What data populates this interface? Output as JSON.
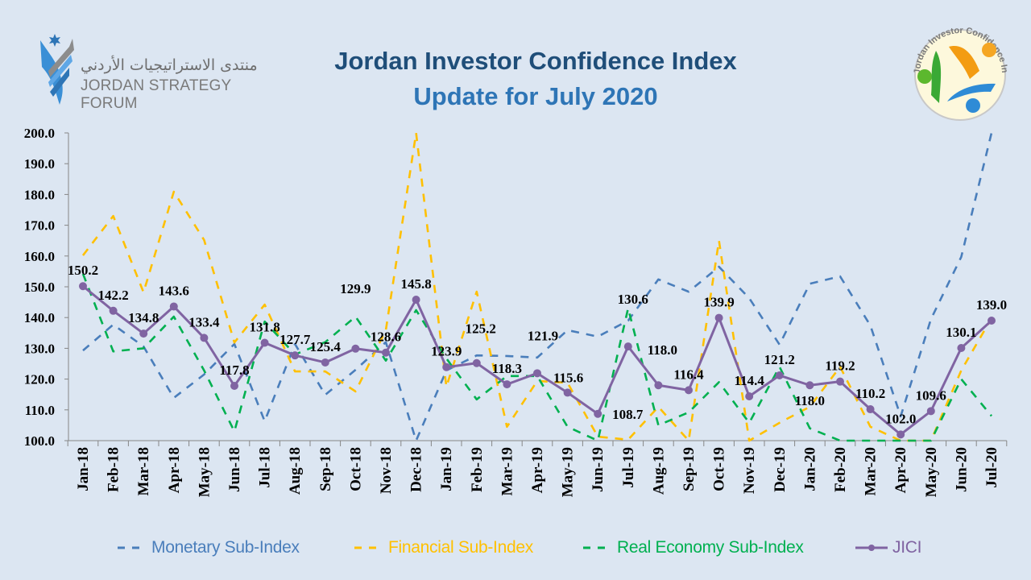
{
  "header": {
    "title": "Jordan Investor Confidence Index",
    "subtitle": "Update for July 2020",
    "org_logo": {
      "arabic": "منتدى الاستراتيجيات الأردني",
      "english": "JORDAN STRATEGY FORUM"
    },
    "index_logo": {
      "ring_text": "Jordan Investor Confidence Index",
      "segments": [
        "Financial System",
        "Monetary",
        "Real Economy"
      ]
    }
  },
  "colors": {
    "monetary": "#4a7ebb",
    "financial": "#ffc000",
    "real_economy": "#00b050",
    "jici": "#8064a2",
    "title": "#1f4e79",
    "subtitle": "#2e75b6"
  },
  "chart_data": {
    "type": "line",
    "title": "",
    "xlabel": "",
    "ylabel": "",
    "ylim": [
      100,
      200
    ],
    "yticks": [
      "100.0",
      "110.0",
      "120.0",
      "130.0",
      "140.0",
      "150.0",
      "160.0",
      "170.0",
      "180.0",
      "190.0",
      "200.0"
    ],
    "grid": false,
    "legend": "bottom",
    "categories": [
      "Jan-18",
      "Feb-18",
      "Mar-18",
      "Apr-18",
      "May-18",
      "Jun-18",
      "Jul-18",
      "Aug-18",
      "Sep-18",
      "Oct-18",
      "Nov-18",
      "Dec-18",
      "Jan-19",
      "Feb-19",
      "Mar-19",
      "Apr-19",
      "May-19",
      "Jun-19",
      "Jul-19",
      "Aug-19",
      "Sep-19",
      "Oct-19",
      "Nov-19",
      "Dec-19",
      "Jan-20",
      "Feb-20",
      "Mar-20",
      "Apr-20",
      "May-20",
      "Jun-20",
      "Jul-20"
    ],
    "series": [
      {
        "name": "Monetary Sub-Index",
        "style": "dashed",
        "color": "#4a7ebb",
        "values": [
          129.3,
          137.7,
          130.6,
          113.9,
          121.5,
          131.4,
          106.3,
          131.4,
          114.9,
          123.0,
          132.0,
          100.0,
          122.8,
          127.7,
          127.5,
          127.0,
          135.9,
          133.8,
          139.0,
          152.4,
          148.4,
          156.5,
          146.3,
          131.2,
          151.0,
          153.4,
          137.4,
          107.9,
          139.5,
          159.7,
          200.0
        ]
      },
      {
        "name": "Financial Sub-Index",
        "style": "dashed",
        "color": "#ffc000",
        "values": [
          160.2,
          173.0,
          148.2,
          180.9,
          165.2,
          131.9,
          144.2,
          122.5,
          122.5,
          116.0,
          135.9,
          200.0,
          117.5,
          148.4,
          104.5,
          119.4,
          118.8,
          101.3,
          100.3,
          111.0,
          100.0,
          165.0,
          100.0,
          105.8,
          111.0,
          124.0,
          104.5,
          100.0,
          100.0,
          122.8,
          139.8
        ]
      },
      {
        "name": "Real Economy Sub-Index",
        "style": "dashed",
        "color": "#00b050",
        "values": [
          154.2,
          129.0,
          130.0,
          140.3,
          122.8,
          103.0,
          138.7,
          128.0,
          132.0,
          140.3,
          126.0,
          142.4,
          126.7,
          113.4,
          121.0,
          121.0,
          104.5,
          100.0,
          143.0,
          105.0,
          109.2,
          119.0,
          105.8,
          124.0,
          104.0,
          100.0,
          100.0,
          100.0,
          100.0,
          120.0,
          108.0
        ]
      },
      {
        "name": "JICI",
        "style": "solid-markers",
        "color": "#8064a2",
        "values": [
          150.2,
          142.2,
          134.8,
          143.6,
          133.4,
          117.8,
          131.8,
          127.7,
          125.4,
          129.9,
          128.6,
          145.8,
          123.9,
          125.2,
          118.3,
          121.9,
          115.6,
          108.7,
          130.6,
          118.0,
          116.4,
          139.9,
          114.4,
          121.2,
          118.0,
          119.2,
          110.2,
          102.0,
          109.6,
          130.1,
          139.0
        ],
        "data_labels": [
          "150.2",
          "142.2",
          "134.8",
          "143.6",
          "133.4",
          "117.8",
          "131.8",
          "127.7",
          "125.4",
          "129.9",
          "128.6",
          "145.8",
          "123.9",
          "125.2",
          "118.3",
          "121.9",
          "115.6",
          "108.7",
          "130.6",
          "118.0",
          "116.4",
          "139.9",
          "114.4",
          "121.2",
          "118.0",
          "119.2",
          "110.2",
          "102.0",
          "109.6",
          "130.1",
          "139.0"
        ]
      }
    ]
  }
}
